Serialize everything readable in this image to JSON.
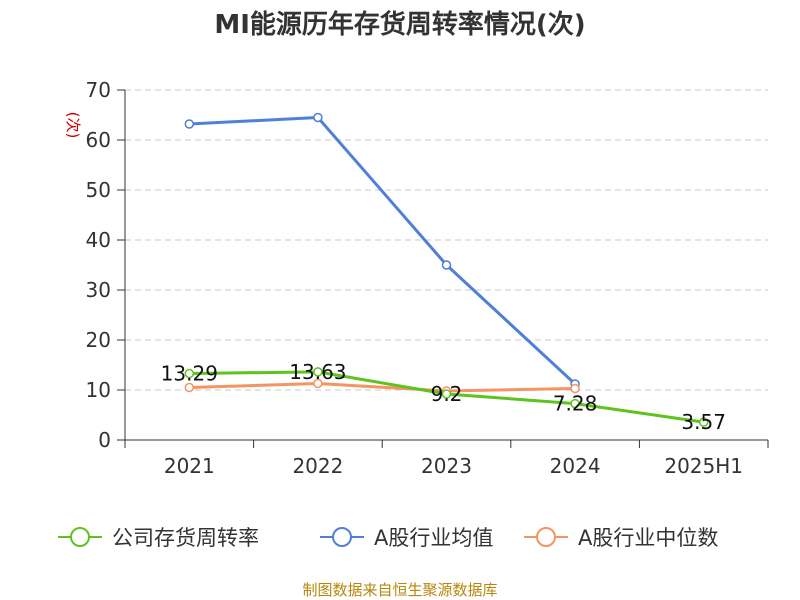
{
  "chart_data": {
    "type": "line",
    "title": "MI能源历年存货周转率情况(次)",
    "xlabel": "",
    "ylabel": "(次)",
    "categories": [
      "2021",
      "2022",
      "2023",
      "2024",
      "2025H1"
    ],
    "ylim": [
      0,
      70
    ],
    "yticks": [
      0,
      10,
      20,
      30,
      40,
      50,
      60,
      70
    ],
    "grid": true,
    "legend_position": "bottom",
    "series": [
      {
        "name": "公司存货周转率",
        "color": "#5cc31f",
        "values": [
          13.29,
          13.63,
          9.2,
          7.28,
          3.57
        ],
        "labels": [
          "13.29",
          "13.63",
          "9.2",
          "7.28",
          "3.57"
        ]
      },
      {
        "name": "A股行业均值",
        "color": "#4f7fd8",
        "values": [
          63.2,
          64.5,
          35.0,
          11.2,
          null
        ]
      },
      {
        "name": "A股行业中位数",
        "color": "#f59361",
        "values": [
          10.5,
          11.3,
          9.8,
          10.3,
          null
        ]
      }
    ],
    "source": "制图数据来自恒生聚源数据库"
  }
}
